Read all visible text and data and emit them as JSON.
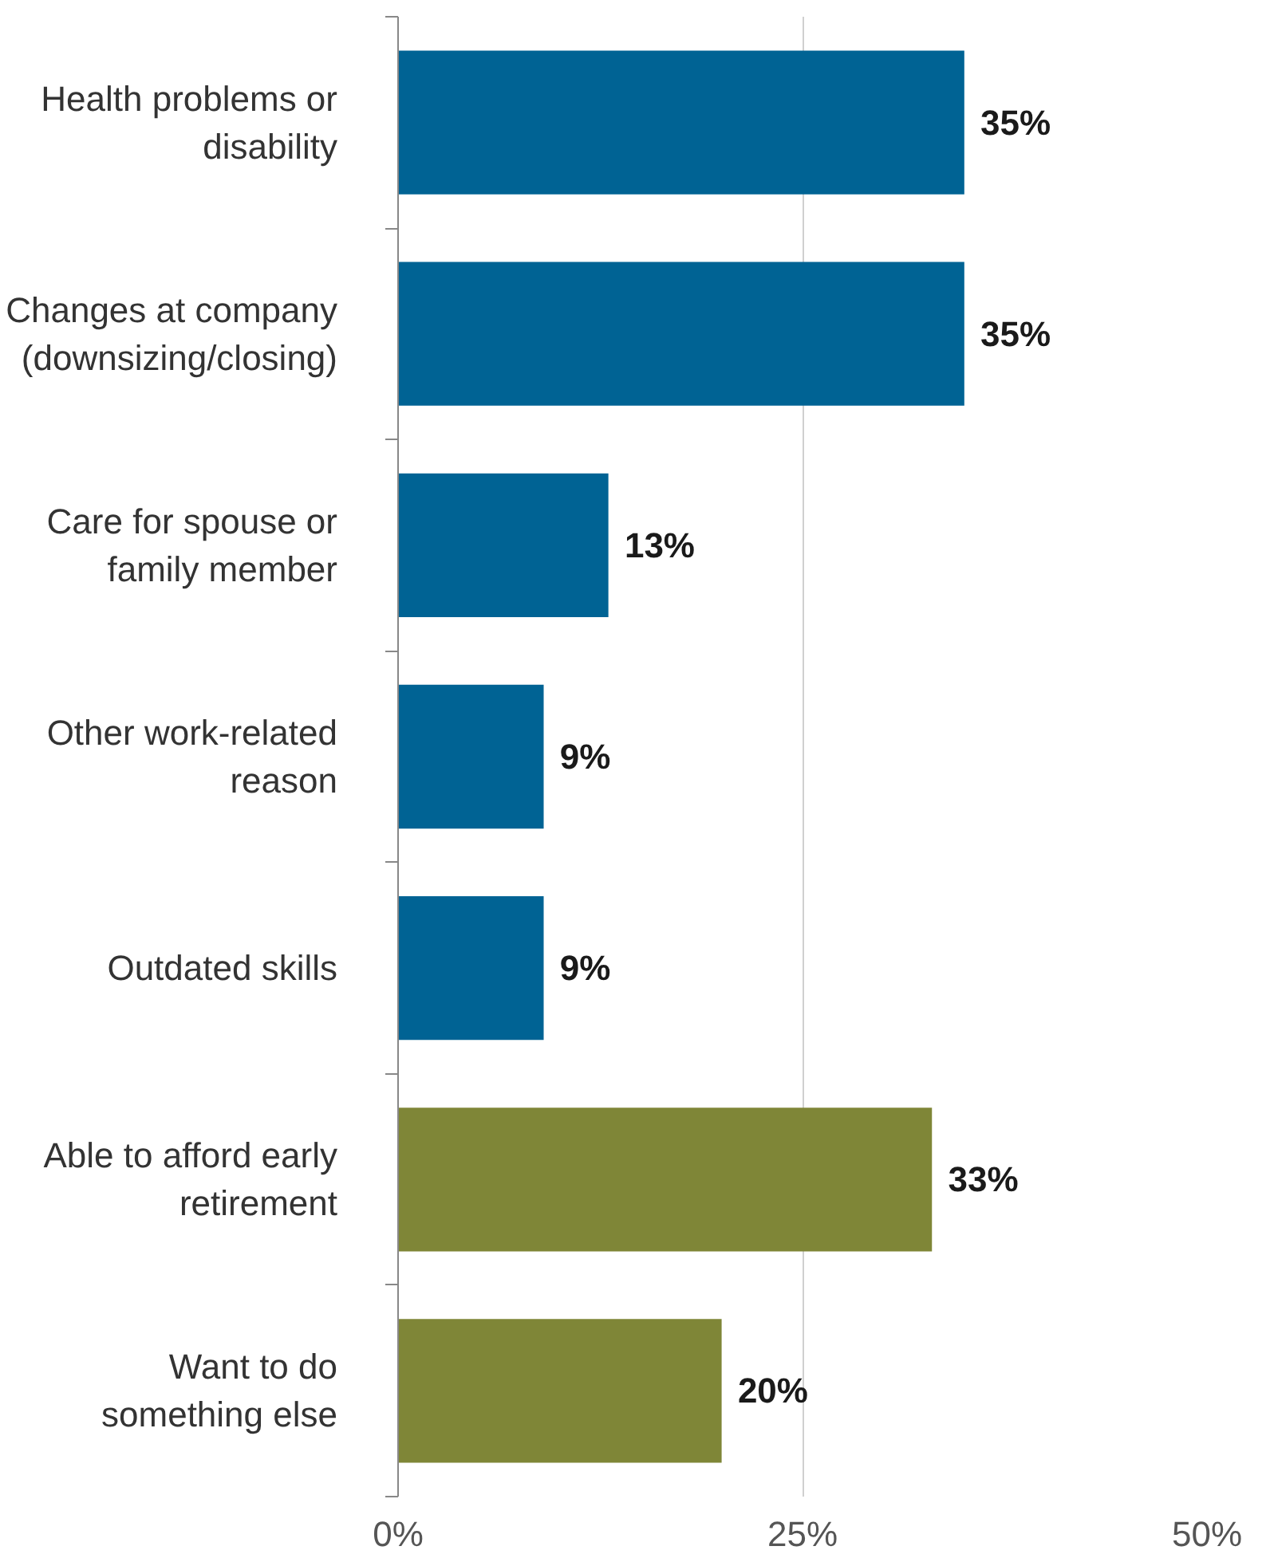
{
  "chart_data": {
    "type": "bar",
    "orientation": "horizontal",
    "categories": [
      "Health problems or\ndisability",
      "Changes at company\n(downsizing/closing)",
      "Care for spouse or\nfamily member",
      "Other work-related\nreason",
      "Outdated skills",
      "Able to afford early\nretirement",
      "Want to do\nsomething else"
    ],
    "values": [
      35,
      35,
      13,
      9,
      9,
      33,
      20
    ],
    "colors": [
      "#006394",
      "#006394",
      "#006394",
      "#006394",
      "#006394",
      "#7f8637",
      "#7f8637"
    ],
    "value_labels": [
      "35%",
      "35%",
      "13%",
      "9%",
      "9%",
      "33%",
      "20%"
    ],
    "xlim": [
      0,
      50
    ],
    "xticks": [
      {
        "value": 0,
        "label": "0%"
      },
      {
        "value": 25,
        "label": "25%"
      },
      {
        "value": 50,
        "label": "50%"
      }
    ],
    "grid": "x"
  }
}
